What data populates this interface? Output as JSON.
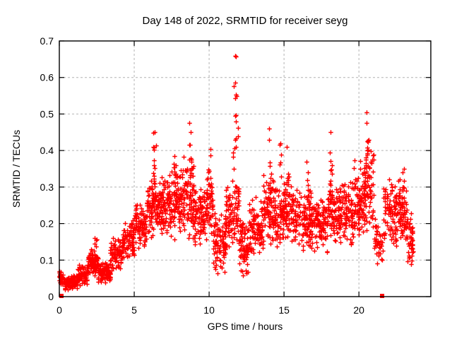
{
  "chart_data": {
    "type": "scatter",
    "title": "Day 148 of 2022, SRMTID for receiver seyg",
    "xlabel": "GPS time / hours",
    "ylabel": "SRMTID / TECUs",
    "xlim": [
      0,
      24.8
    ],
    "ylim": [
      0,
      0.7
    ],
    "xticks": [
      0,
      5,
      10,
      15,
      20
    ],
    "yticks": [
      "0",
      "0.1",
      "0.2",
      "0.3",
      "0.4",
      "0.5",
      "0.6",
      "0.7"
    ],
    "ytick_values": [
      0,
      0.1,
      0.2,
      0.3,
      0.4,
      0.5,
      0.6,
      0.7
    ],
    "grid": true,
    "legend": "none",
    "marker": {
      "shape": "plus",
      "color": "#ff0000",
      "size": 3.2
    },
    "grid_color": "#b4b4b4",
    "frame_color": "#000000",
    "seed": 20220148,
    "zero_markers": {
      "shape": "filled-square",
      "color": "#ff0000",
      "points": [
        {
          "t": 0.14,
          "v": 0
        },
        {
          "t": 21.55,
          "v": 0
        }
      ]
    },
    "bins_format": [
      "t_start",
      "t_end",
      "value_min",
      "value_max",
      "count"
    ],
    "density_bins": [
      [
        0.0,
        0.35,
        0.03,
        0.075,
        30
      ],
      [
        0.35,
        1.2,
        0.015,
        0.065,
        95
      ],
      [
        1.2,
        1.9,
        0.03,
        0.09,
        70
      ],
      [
        1.9,
        2.35,
        0.06,
        0.135,
        55
      ],
      [
        2.35,
        2.6,
        0.05,
        0.12,
        30
      ],
      [
        2.6,
        3.4,
        0.035,
        0.095,
        80
      ],
      [
        3.4,
        4.2,
        0.07,
        0.17,
        80
      ],
      [
        4.2,
        5.0,
        0.1,
        0.21,
        85
      ],
      [
        5.0,
        5.8,
        0.13,
        0.26,
        85
      ],
      [
        5.8,
        6.6,
        0.15,
        0.35,
        90
      ],
      [
        6.6,
        7.4,
        0.16,
        0.34,
        95
      ],
      [
        7.4,
        8.1,
        0.15,
        0.36,
        80
      ],
      [
        8.1,
        9.0,
        0.15,
        0.4,
        95
      ],
      [
        9.0,
        9.8,
        0.13,
        0.3,
        85
      ],
      [
        9.8,
        10.25,
        0.14,
        0.35,
        45
      ],
      [
        10.25,
        11.1,
        0.06,
        0.25,
        90
      ],
      [
        11.1,
        12.0,
        0.13,
        0.34,
        85
      ],
      [
        12.0,
        12.6,
        0.05,
        0.22,
        65
      ],
      [
        12.6,
        13.6,
        0.1,
        0.28,
        100
      ],
      [
        13.6,
        14.3,
        0.14,
        0.34,
        75
      ],
      [
        14.3,
        15.0,
        0.13,
        0.32,
        75
      ],
      [
        15.0,
        15.6,
        0.14,
        0.33,
        60
      ],
      [
        15.6,
        16.8,
        0.12,
        0.3,
        120
      ],
      [
        16.8,
        17.9,
        0.12,
        0.28,
        110
      ],
      [
        17.9,
        18.35,
        0.16,
        0.33,
        45
      ],
      [
        18.35,
        19.6,
        0.13,
        0.32,
        125
      ],
      [
        19.6,
        20.3,
        0.15,
        0.38,
        75
      ],
      [
        20.3,
        21.0,
        0.17,
        0.42,
        80
      ],
      [
        21.0,
        21.65,
        0.08,
        0.22,
        40
      ],
      [
        21.65,
        23.2,
        0.13,
        0.33,
        155
      ],
      [
        23.2,
        23.6,
        0.08,
        0.24,
        45
      ]
    ],
    "spikes_format": [
      "t_center",
      "value_base",
      "value_top",
      "count"
    ],
    "spikes": [
      [
        2.4,
        0.1,
        0.16,
        6
      ],
      [
        6.35,
        0.3,
        0.45,
        14
      ],
      [
        7.7,
        0.28,
        0.385,
        8
      ],
      [
        8.75,
        0.32,
        0.475,
        12
      ],
      [
        10.0,
        0.28,
        0.405,
        8
      ],
      [
        11.7,
        0.33,
        0.66,
        14
      ],
      [
        11.85,
        0.3,
        0.55,
        7
      ],
      [
        14.05,
        0.27,
        0.46,
        10
      ],
      [
        14.7,
        0.26,
        0.42,
        8
      ],
      [
        15.2,
        0.28,
        0.41,
        7
      ],
      [
        16.6,
        0.26,
        0.37,
        6
      ],
      [
        18.1,
        0.28,
        0.45,
        9
      ],
      [
        20.55,
        0.33,
        0.505,
        12
      ],
      [
        23.0,
        0.25,
        0.35,
        5
      ]
    ]
  }
}
